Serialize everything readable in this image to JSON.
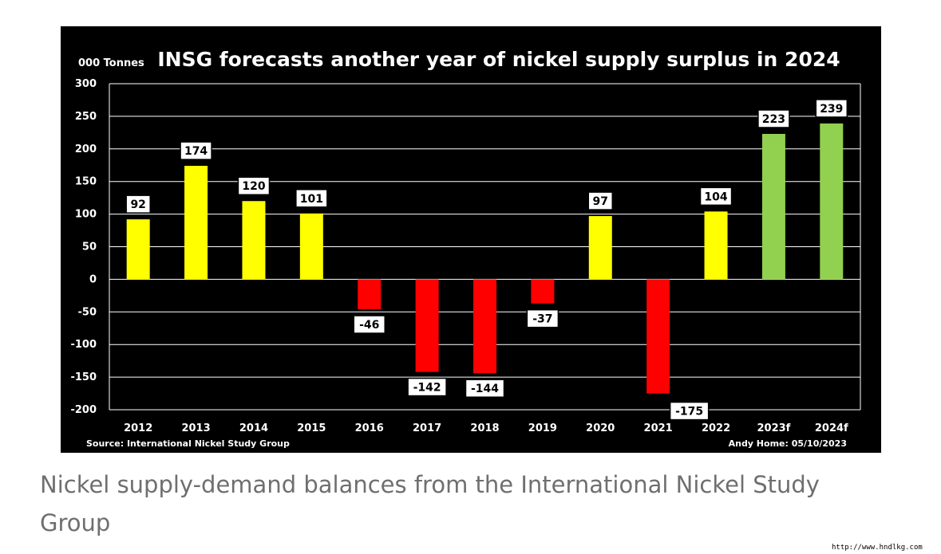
{
  "chart_data": {
    "type": "bar",
    "title": "INSG forecasts another year of nickel supply surplus in 2024",
    "ylabel": "000 Tonnes",
    "xlabel": "",
    "source": "Source: International Nickel Study Group",
    "credit": "Andy Home: 05/10/2023",
    "categories": [
      "2012",
      "2013",
      "2014",
      "2015",
      "2016",
      "2017",
      "2018",
      "2019",
      "2020",
      "2021",
      "2022",
      "2023f",
      "2024f"
    ],
    "values": [
      92,
      174,
      120,
      101,
      -46,
      -142,
      -144,
      -37,
      97,
      -175,
      104,
      223,
      239
    ],
    "data_labels": [
      "92",
      "174",
      "120",
      "101",
      "-46",
      "-142",
      "-144",
      "-37",
      "97",
      "-175",
      "104",
      "223",
      "239"
    ],
    "yticks": [
      300,
      250,
      200,
      150,
      100,
      50,
      0,
      -50,
      -100,
      -150,
      -200
    ],
    "ylim": [
      -200,
      300
    ],
    "grid": true,
    "colors": {
      "surplus": "#ffff00",
      "deficit": "#ff0000",
      "forecast": "#92d050"
    }
  },
  "caption": "Nickel supply-demand balances from the International Nickel Study Group",
  "watermark": "http://www.hndlkg.com"
}
